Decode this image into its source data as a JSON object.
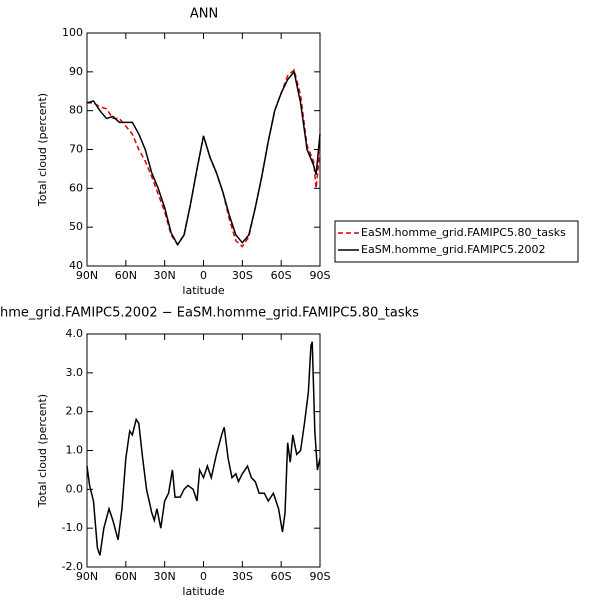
{
  "chart_data": [
    {
      "type": "line",
      "title": "ANN",
      "xlabel": "latitude",
      "ylabel": "Total cloud (percent)",
      "xlim": [
        90,
        -90
      ],
      "xticks": [
        {
          "value": 90,
          "label": "90N"
        },
        {
          "value": 60,
          "label": "60N"
        },
        {
          "value": 30,
          "label": "30N"
        },
        0,
        {
          "value": -30,
          "label": "30S"
        },
        {
          "value": -60,
          "label": "60S"
        },
        {
          "value": -90,
          "label": "90S"
        }
      ],
      "ylim": [
        40,
        100
      ],
      "yticks": [
        40,
        50,
        60,
        70,
        80,
        90,
        100
      ],
      "legend": "right",
      "series": [
        {
          "name": "EaSM.homme_grid.FAMIPC5.80_tasks",
          "color": "#e00000",
          "linestyle": "dashed",
          "x": [
            90,
            85,
            80,
            75,
            70,
            65,
            60,
            55,
            50,
            45,
            40,
            35,
            30,
            25,
            20,
            15,
            10,
            5,
            0,
            -5,
            -10,
            -15,
            -20,
            -25,
            -30,
            -35,
            -40,
            -45,
            -50,
            -55,
            -60,
            -65,
            -70,
            -75,
            -80,
            -85,
            -87,
            -90
          ],
          "values": [
            82,
            82,
            81,
            80.5,
            78,
            78,
            76,
            74,
            70,
            67,
            63,
            58.5,
            54,
            48,
            45.5,
            48,
            56,
            65,
            73.5,
            68,
            64,
            59,
            52,
            46.5,
            45,
            47.5,
            55,
            63,
            72,
            80,
            84.5,
            89,
            90.5,
            84,
            71,
            67,
            60,
            70
          ]
        },
        {
          "name": "EaSM.homme_grid.FAMIPC5.2002",
          "color": "#000000",
          "linestyle": "solid",
          "x": [
            90,
            85,
            80,
            75,
            70,
            65,
            60,
            55,
            50,
            45,
            40,
            35,
            30,
            25,
            20,
            15,
            10,
            5,
            0,
            -5,
            -10,
            -15,
            -20,
            -25,
            -30,
            -35,
            -40,
            -45,
            -50,
            -55,
            -60,
            -65,
            -70,
            -75,
            -80,
            -85,
            -87,
            -90
          ],
          "values": [
            82,
            82.5,
            80,
            78,
            78.5,
            77,
            77,
            77,
            74,
            70,
            64,
            60,
            55,
            48.5,
            45.5,
            48,
            56,
            65,
            73.5,
            68,
            64,
            59,
            53,
            48,
            46,
            48,
            55,
            63,
            72,
            80,
            84.5,
            88,
            90,
            82,
            70,
            66,
            63.5,
            74
          ]
        }
      ]
    },
    {
      "type": "line",
      "title": "hme_grid.FAMIPC5.2002 − EaSM.homme_grid.FAMIPC5.80_tasks",
      "xlabel": "latitude",
      "ylabel": "Total cloud (percent)",
      "xlim": [
        90,
        -90
      ],
      "xticks": [
        {
          "value": 90,
          "label": "90N"
        },
        {
          "value": 60,
          "label": "60N"
        },
        {
          "value": 30,
          "label": "30N"
        },
        0,
        {
          "value": -30,
          "label": "30S"
        },
        {
          "value": -60,
          "label": "60S"
        },
        {
          "value": -90,
          "label": "90S"
        }
      ],
      "ylim": [
        -2,
        4
      ],
      "yticks": [
        {
          "value": -2,
          "label": "-2.0"
        },
        {
          "value": -1,
          "label": "-1.0"
        },
        {
          "value": 0,
          "label": "0.0"
        },
        {
          "value": 1,
          "label": "1.0"
        },
        {
          "value": 2,
          "label": "2.0"
        },
        {
          "value": 3,
          "label": "3.0"
        },
        {
          "value": 4,
          "label": "4.0"
        }
      ],
      "series": [
        {
          "color": "#000000",
          "linestyle": "solid",
          "x": [
            90,
            88,
            85,
            82,
            80,
            77,
            73,
            70,
            66,
            63,
            60,
            57,
            55,
            52,
            50,
            47,
            44,
            40,
            38,
            36,
            33,
            30,
            27,
            24,
            22,
            18,
            15,
            12,
            8,
            5,
            3,
            0,
            -3,
            -6,
            -10,
            -14,
            -16,
            -19,
            -22,
            -25,
            -27,
            -30,
            -34,
            -37,
            -40,
            -43,
            -47,
            -50,
            -54,
            -58,
            -61,
            -63,
            -65,
            -67,
            -69,
            -72,
            -75,
            -78,
            -81,
            -83,
            -84,
            -86,
            -88,
            -90
          ],
          "values": [
            0.6,
            0.1,
            -0.3,
            -1.5,
            -1.7,
            -1.0,
            -0.5,
            -0.8,
            -1.3,
            -0.5,
            0.8,
            1.5,
            1.4,
            1.8,
            1.7,
            0.8,
            0.0,
            -0.6,
            -0.8,
            -0.5,
            -1.0,
            -0.3,
            -0.1,
            0.5,
            -0.2,
            -0.2,
            0.0,
            0.1,
            0.0,
            -0.3,
            0.5,
            0.3,
            0.6,
            0.3,
            0.9,
            1.4,
            1.6,
            0.8,
            0.3,
            0.4,
            0.2,
            0.4,
            0.6,
            0.3,
            0.2,
            -0.1,
            -0.1,
            -0.3,
            -0.1,
            -0.5,
            -1.1,
            -0.6,
            1.2,
            0.7,
            1.4,
            0.9,
            1.0,
            1.7,
            2.5,
            3.7,
            3.8,
            1.5,
            0.5,
            0.8
          ]
        }
      ]
    }
  ]
}
